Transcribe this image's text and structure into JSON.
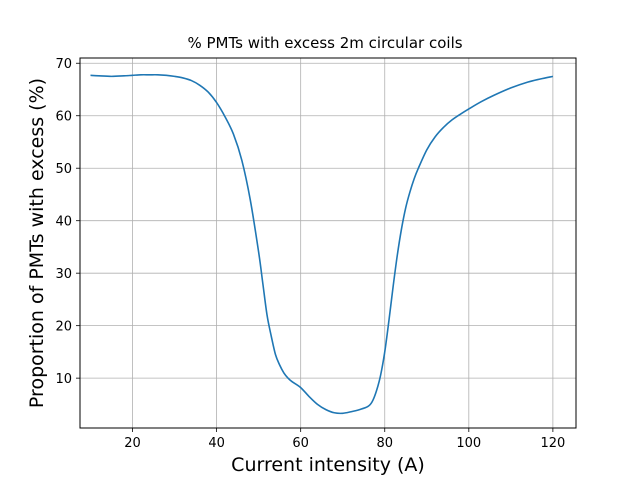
{
  "chart_data": {
    "type": "line",
    "title": "% PMTs with excess 2m circular coils",
    "xlabel": "Current intensity (A)",
    "ylabel": "Proportion of PMTs with excess (%)",
    "xlim": [
      7.5,
      125.5
    ],
    "ylim": [
      0.5,
      71
    ],
    "xticks": [
      20,
      40,
      60,
      80,
      100,
      120
    ],
    "yticks": [
      10,
      20,
      30,
      40,
      50,
      60,
      70
    ],
    "grid": true,
    "series": [
      {
        "color": "#1f77b4",
        "x": [
          10,
          12,
          15,
          18,
          20,
          22,
          24,
          26,
          28,
          30,
          32,
          34,
          36,
          38,
          40,
          42,
          44,
          46,
          48,
          50,
          51,
          52,
          53,
          54,
          55,
          56,
          57,
          58,
          60,
          62,
          64,
          66,
          68,
          70,
          72,
          74,
          76,
          77,
          78,
          79,
          80,
          81,
          82,
          83,
          84,
          85,
          86,
          87,
          88,
          90,
          92,
          94,
          96,
          98,
          100,
          103,
          106,
          110,
          114,
          117,
          120
        ],
        "y": [
          67.7,
          67.6,
          67.5,
          67.6,
          67.7,
          67.8,
          67.8,
          67.8,
          67.7,
          67.5,
          67.2,
          66.7,
          65.8,
          64.5,
          62.5,
          59.8,
          56.5,
          51.5,
          44.0,
          34.0,
          28.0,
          22.0,
          18.0,
          14.5,
          12.5,
          11.0,
          10.0,
          9.3,
          8.2,
          6.5,
          5.0,
          4.0,
          3.4,
          3.3,
          3.6,
          4.0,
          4.6,
          5.5,
          7.5,
          10.5,
          15.0,
          21.0,
          27.5,
          33.5,
          38.5,
          42.5,
          45.5,
          48.0,
          50.0,
          53.5,
          56.0,
          57.8,
          59.2,
          60.3,
          61.3,
          62.7,
          63.9,
          65.3,
          66.4,
          67.0,
          67.5
        ]
      }
    ]
  }
}
